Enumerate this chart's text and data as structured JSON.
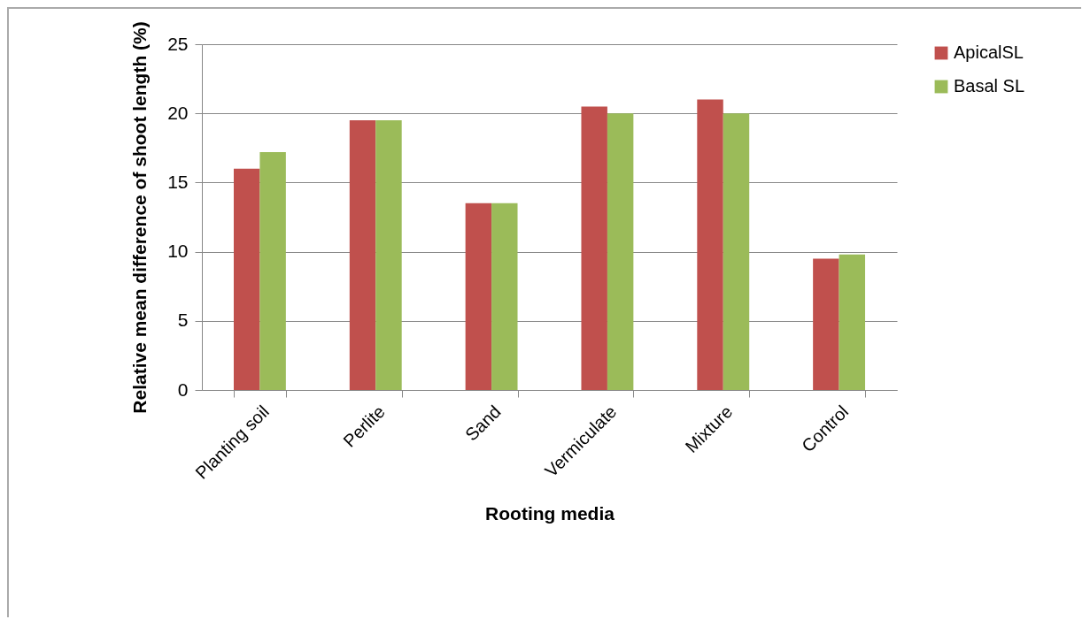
{
  "chart_data": {
    "type": "bar",
    "xlabel": "Rooting media",
    "ylabel": "Relative mean difference of shoot length (%)",
    "categories": [
      "Planting soil",
      "Perlite",
      "Sand",
      "Vermiculate",
      "Mixture",
      "Control"
    ],
    "series": [
      {
        "name": "ApicalSL",
        "color": "#c0504d",
        "values": [
          16,
          19.5,
          13.5,
          20.5,
          21,
          9.5
        ]
      },
      {
        "name": "Basal SL",
        "color": "#9bbb59",
        "values": [
          17.2,
          19.5,
          13.5,
          20,
          20,
          9.8
        ]
      }
    ],
    "ylim": [
      0,
      25
    ],
    "yticks": [
      0,
      5,
      10,
      15,
      20,
      25
    ],
    "grid": "y",
    "legend": "right"
  }
}
